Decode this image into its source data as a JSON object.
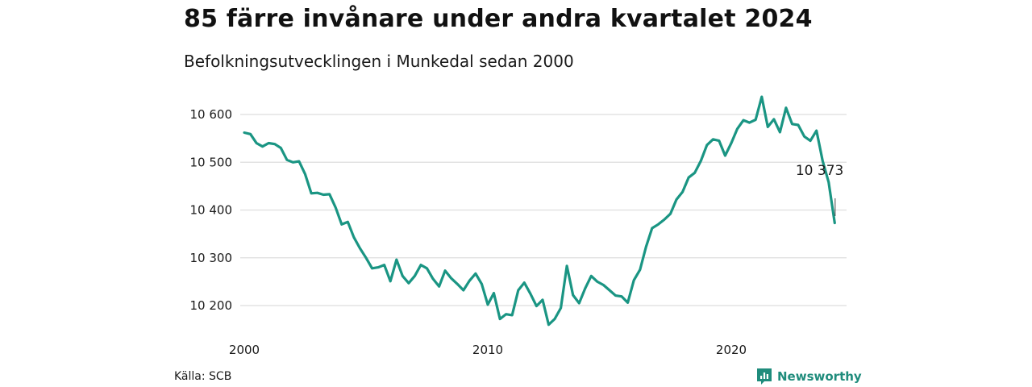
{
  "header": {
    "title": "85 färre invånare under andra kvartalet 2024",
    "subtitle": "Befolkningsutvecklingen i Munkedal sedan 2000"
  },
  "footer": {
    "source": "Källa: SCB",
    "brand": "Newsworthy"
  },
  "colors": {
    "line": "#1a9583",
    "grid": "#dddddd",
    "brand": "#1f8c7c"
  },
  "chart_data": {
    "type": "line",
    "title": "85 färre invånare under andra kvartalet 2024",
    "subtitle": "Befolkningsutvecklingen i Munkedal sedan 2000",
    "xlabel": "",
    "ylabel": "",
    "grid": true,
    "x_ticks": [
      "2000",
      "2010",
      "2020"
    ],
    "y_ticks": [
      "10 200",
      "10 300",
      "10 400",
      "10 500",
      "10 600"
    ],
    "y_tick_values": [
      10200,
      10300,
      10400,
      10500,
      10600
    ],
    "xlim": [
      2000.0,
      2025.0
    ],
    "ylim": [
      10150,
      10650
    ],
    "end_label": "10 373",
    "series": [
      {
        "x": [
          2000.0,
          2000.25,
          2000.5,
          2000.75,
          2001.0,
          2001.25,
          2001.5,
          2001.75,
          2002.0,
          2002.25,
          2002.5,
          2002.75,
          2003.0,
          2003.25,
          2003.5,
          2003.75,
          2004.0,
          2004.25,
          2004.5,
          2004.75,
          2005.0,
          2005.25,
          2005.5,
          2005.75,
          2006.0,
          2006.25,
          2006.5,
          2006.75,
          2007.0,
          2007.25,
          2007.5,
          2007.75,
          2008.0,
          2008.25,
          2008.5,
          2008.75,
          2009.0,
          2009.25,
          2009.5,
          2009.75,
          2010.0,
          2010.25,
          2010.5,
          2010.75,
          2011.0,
          2011.25,
          2011.5,
          2011.75,
          2012.0,
          2012.25,
          2012.5,
          2012.75,
          2013.0,
          2013.25,
          2013.5,
          2013.75,
          2014.0,
          2014.25,
          2014.5,
          2014.75,
          2015.0,
          2015.25,
          2015.5,
          2015.75,
          2016.0,
          2016.25,
          2016.5,
          2016.75,
          2017.0,
          2017.25,
          2017.5,
          2017.75,
          2018.0,
          2018.25,
          2018.5,
          2018.75,
          2019.0,
          2019.25,
          2019.5,
          2019.75,
          2020.0,
          2020.25,
          2020.5,
          2020.75,
          2021.0,
          2021.25,
          2021.5,
          2021.75,
          2022.0,
          2022.25,
          2022.5,
          2022.75,
          2023.0,
          2023.25,
          2023.5,
          2023.75,
          2024.0,
          2024.25
        ],
        "values": [
          10562,
          10559,
          10540,
          10533,
          10540,
          10538,
          10530,
          10505,
          10500,
          10502,
          10475,
          10435,
          10436,
          10432,
          10433,
          10405,
          10370,
          10375,
          10343,
          10320,
          10300,
          10278,
          10280,
          10285,
          10251,
          10296,
          10262,
          10247,
          10262,
          10285,
          10278,
          10256,
          10240,
          10273,
          10257,
          10245,
          10232,
          10252,
          10267,
          10245,
          10202,
          10226,
          10172,
          10182,
          10180,
          10232,
          10248,
          10225,
          10199,
          10212,
          10160,
          10172,
          10195,
          10283,
          10222,
          10205,
          10236,
          10262,
          10250,
          10243,
          10232,
          10221,
          10219,
          10206,
          10253,
          10275,
          10323,
          10362,
          10370,
          10380,
          10392,
          10422,
          10438,
          10468,
          10478,
          10503,
          10536,
          10548,
          10545,
          10514,
          10540,
          10570,
          10588,
          10583,
          10589,
          10637,
          10574,
          10590,
          10563,
          10614,
          10580,
          10578,
          10554,
          10545,
          10566,
          10503,
          10458,
          10373
        ]
      }
    ]
  }
}
